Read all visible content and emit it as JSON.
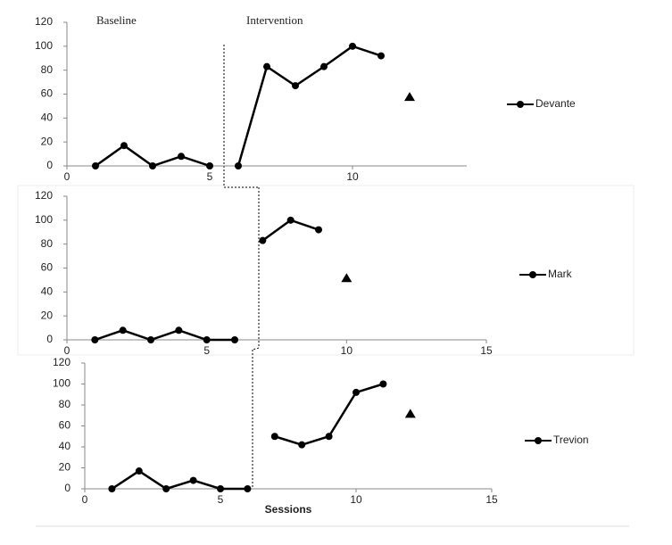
{
  "chart_data": [
    {
      "type": "line",
      "annotations": [
        "Baseline",
        "Intervention"
      ],
      "legend": "Devante",
      "color": "#000000",
      "xlim": [
        0,
        14
      ],
      "xticks": [
        0,
        5,
        10
      ],
      "ylim": [
        0,
        120
      ],
      "yticks": [
        0,
        20,
        40,
        60,
        80,
        100,
        120
      ],
      "baseline": {
        "x": [
          1,
          2,
          3,
          4,
          5
        ],
        "values": [
          0,
          17,
          0,
          8,
          0
        ]
      },
      "intervention": {
        "x": [
          6,
          7,
          8,
          9,
          10,
          11
        ],
        "values": [
          0,
          83,
          67,
          83,
          100,
          92
        ]
      },
      "followup": {
        "x": [
          12
        ],
        "values": [
          58
        ]
      }
    },
    {
      "type": "line",
      "legend": "Mark",
      "color": "#000000",
      "xlim": [
        0,
        15
      ],
      "xticks": [
        0,
        5,
        10,
        15
      ],
      "ylim": [
        0,
        120
      ],
      "yticks": [
        0,
        20,
        40,
        60,
        80,
        100,
        120
      ],
      "baseline": {
        "x": [
          1,
          2,
          3,
          4,
          5,
          6
        ],
        "values": [
          0,
          8,
          0,
          8,
          0,
          0
        ]
      },
      "intervention": {
        "x": [
          7,
          8,
          9
        ],
        "values": [
          83,
          100,
          92
        ]
      },
      "followup": {
        "x": [
          10
        ],
        "values": [
          52
        ]
      }
    },
    {
      "type": "line",
      "legend": "Trevion",
      "x_label": "Sessions",
      "color": "#000000",
      "xlim": [
        0,
        15
      ],
      "xticks": [
        0,
        5,
        10,
        15
      ],
      "ylim": [
        0,
        120
      ],
      "yticks": [
        0,
        20,
        40,
        60,
        80,
        100,
        120
      ],
      "baseline": {
        "x": [
          1,
          2,
          3,
          4,
          5,
          6
        ],
        "values": [
          0,
          17,
          0,
          8,
          0,
          0
        ]
      },
      "intervention": {
        "x": [
          7,
          8,
          9,
          10,
          11
        ],
        "values": [
          50,
          42,
          50,
          92,
          100
        ]
      },
      "followup": {
        "x": [
          12
        ],
        "values": [
          72
        ]
      }
    }
  ]
}
